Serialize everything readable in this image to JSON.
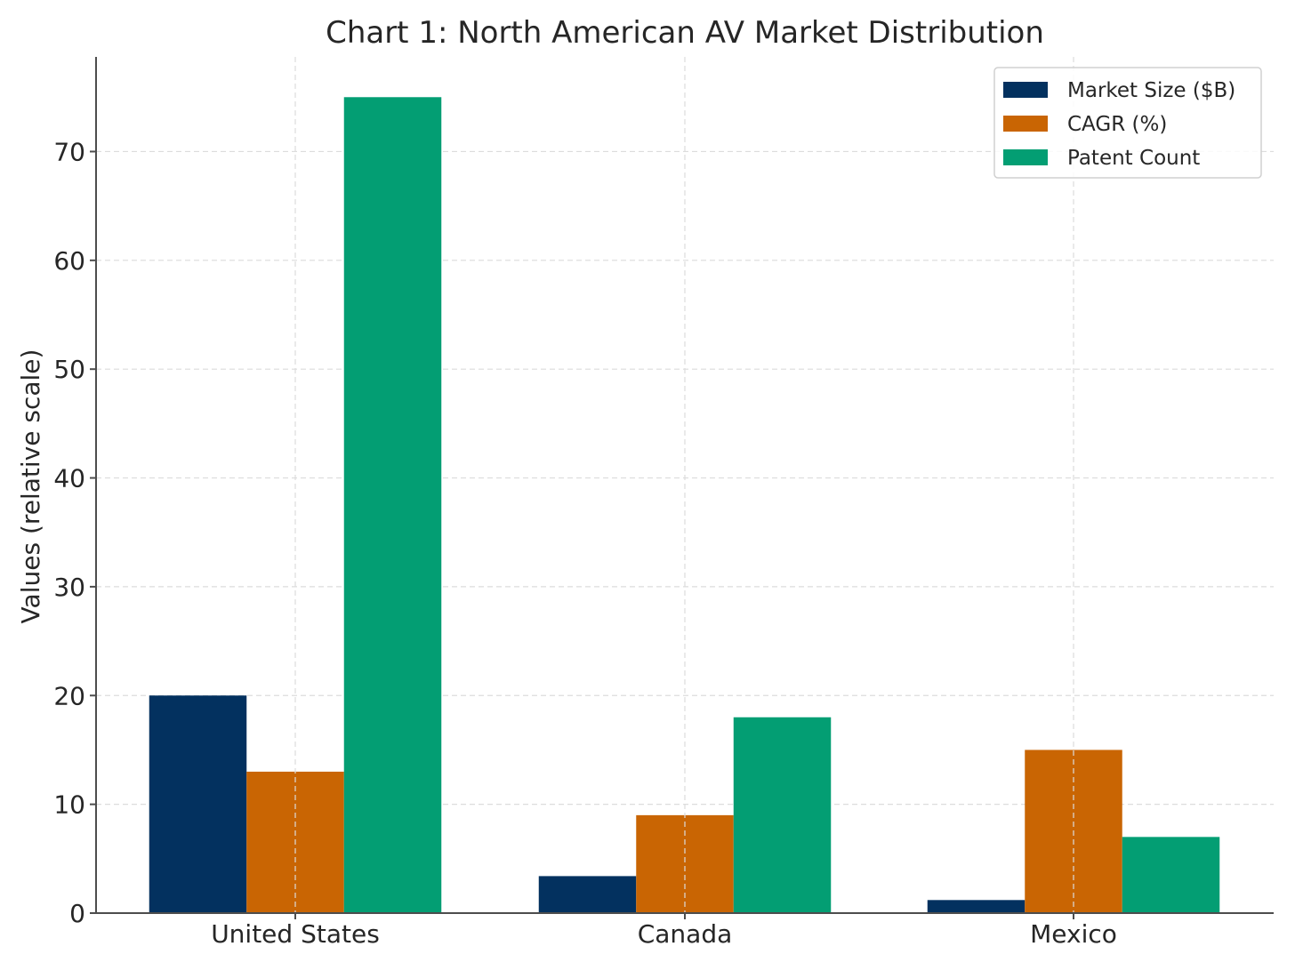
{
  "chart_data": {
    "type": "bar",
    "title": "Chart 1: North American AV Market Distribution",
    "xlabel": "",
    "ylabel": "Values (relative scale)",
    "categories": [
      "United States",
      "Canada",
      "Mexico"
    ],
    "series": [
      {
        "name": "Market Size ($B)",
        "color": "#03315f",
        "values": [
          20,
          3.4,
          1.2
        ]
      },
      {
        "name": "CAGR (%)",
        "color": "#c96503",
        "values": [
          13,
          9,
          15
        ]
      },
      {
        "name": "Patent Count",
        "color": "#039e73",
        "values": [
          75,
          18,
          7
        ]
      }
    ],
    "ylim": [
      0,
      78.7
    ],
    "yticks": [
      0,
      10,
      20,
      30,
      40,
      50,
      60,
      70
    ],
    "grid": true,
    "legend_position": "top-right"
  }
}
